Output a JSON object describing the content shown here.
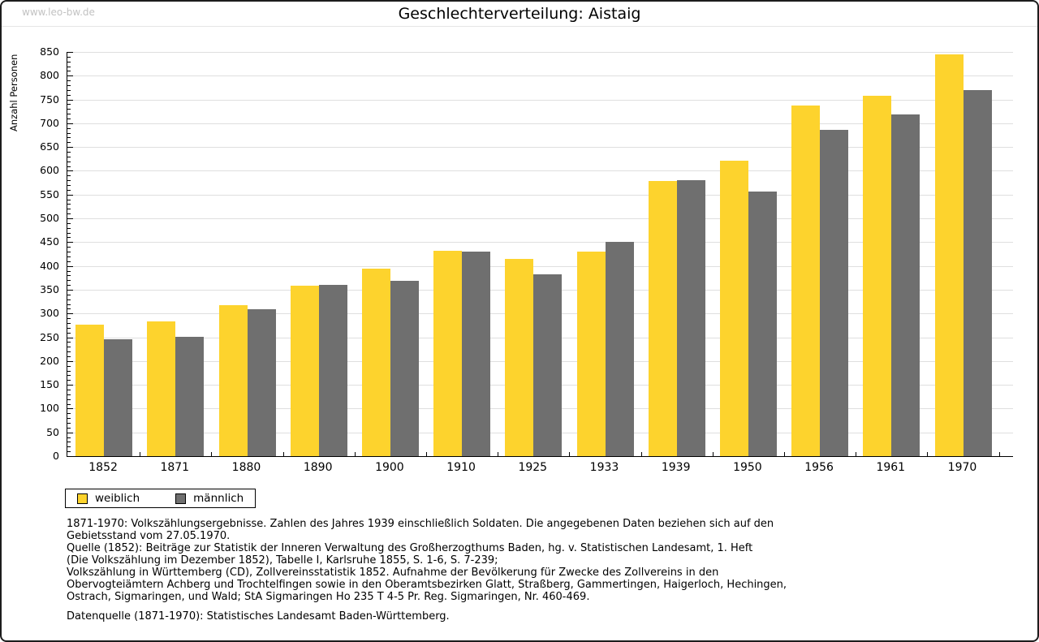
{
  "watermark": "www.leo-bw.de",
  "title": "Geschlechterverteilung: Aistaig",
  "chart_data": {
    "type": "bar",
    "title": "Geschlechterverteilung: Aistaig",
    "categories": [
      "1852",
      "1871",
      "1880",
      "1890",
      "1900",
      "1910",
      "1925",
      "1933",
      "1939",
      "1950",
      "1956",
      "1961",
      "1970"
    ],
    "series": [
      {
        "name": "weiblich",
        "color": "#FDD32D",
        "values": [
          277,
          284,
          318,
          358,
          394,
          432,
          415,
          430,
          578,
          622,
          737,
          758,
          845
        ]
      },
      {
        "name": "männlich",
        "color": "#6F6F6F",
        "values": [
          246,
          251,
          309,
          360,
          368,
          430,
          382,
          451,
          581,
          557,
          686,
          718,
          770
        ]
      }
    ],
    "xlabel": "",
    "ylabel": "Anzahl Personen",
    "ylim": [
      0,
      850
    ],
    "ytick_step": 50,
    "yminor_step": 10,
    "grid": true,
    "legend_position": "bottom-left",
    "gridline_color": "#dfdfdf"
  },
  "legend": {
    "items": [
      {
        "label": "weiblich",
        "color": "#FDD32D"
      },
      {
        "label": "männlich",
        "color": "#6F6F6F"
      }
    ]
  },
  "footnotes": {
    "lines": [
      "1871-1970: Volkszählungsergebnisse. Zahlen des Jahres 1939 einschließlich Soldaten. Die angegebenen Daten beziehen sich auf den",
      "Gebietsstand vom 27.05.1970.",
      "Quelle (1852): Beiträge zur Statistik der Inneren Verwaltung des Großherzogthums Baden, hg. v. Statistischen Landesamt, 1. Heft",
      "(Die Volkszählung im Dezember 1852), Tabelle I, Karlsruhe 1855, S. 1-6, S. 7-239;",
      "Volkszählung in Württemberg (CD), Zollvereinsstatistik 1852. Aufnahme der Bevölkerung für Zwecke des Zollvereins in den",
      "Obervogteiämtern Achberg und Trochtelfingen sowie in den Oberamtsbezirken Glatt, Straßberg, Gammertingen, Haigerloch, Hechingen,",
      "Ostrach, Sigmaringen, und Wald; StA Sigmaringen Ho 235 T 4-5 Pr. Reg. Sigmaringen, Nr. 460-469."
    ],
    "datasource": "Datenquelle (1871-1970): Statistisches Landesamt Baden-Württemberg."
  }
}
